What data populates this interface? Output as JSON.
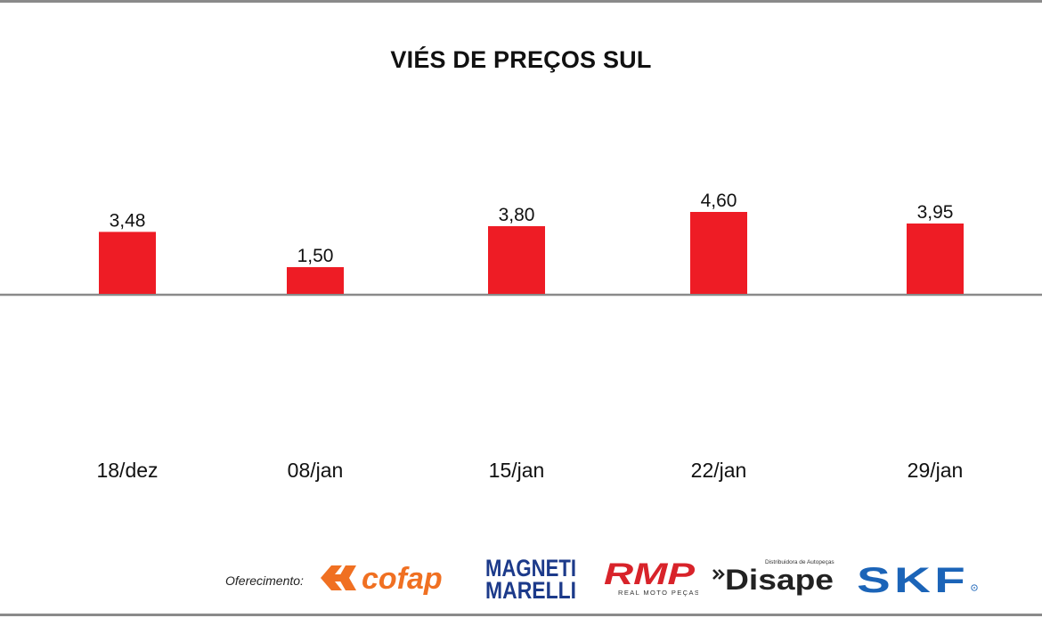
{
  "chart_data": {
    "type": "bar",
    "title": "VIÉS DE PREÇOS SUL",
    "categories": [
      "18/dez",
      "08/jan",
      "15/jan",
      "22/jan",
      "29/jan"
    ],
    "values": [
      3.48,
      1.5,
      3.8,
      4.6,
      3.95
    ],
    "data_labels": [
      "3,48",
      "1,50",
      "3,80",
      "4,60",
      "3,95"
    ],
    "bar_color": "#ee1c25",
    "baseline": 0,
    "grid": false,
    "legend": "none"
  },
  "footer": {
    "sponsor_label": "Oferecimento:",
    "logos": [
      {
        "name": "cofap",
        "text": "cofap"
      },
      {
        "name": "magneti-marelli",
        "line1": "MAGNETI",
        "line2": "MARELLI"
      },
      {
        "name": "rmp",
        "text": "RMP",
        "subtitle": "REAL MOTO PEÇAS"
      },
      {
        "name": "disape",
        "text": "Disape",
        "subtitle": "Distribuidora de Autopeças"
      },
      {
        "name": "skf",
        "text": "SKF"
      }
    ]
  },
  "colors": {
    "bar": "#ee1c25",
    "axis": "#8a8a8a",
    "frame": "#8a8a8a",
    "cofap": "#f07022",
    "magneti": "#1c3a8a",
    "rmp": "#d8232a",
    "skf": "#1b64b8"
  }
}
